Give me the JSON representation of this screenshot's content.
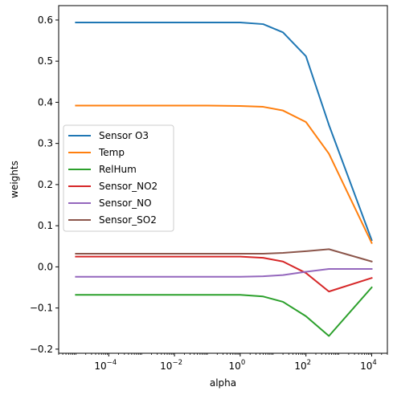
{
  "chart_data": {
    "type": "line",
    "xscale": "log",
    "xlabel": "alpha",
    "ylabel": "weights",
    "xlim": [
      3e-06,
      30000
    ],
    "ylim": [
      -0.21,
      0.635
    ],
    "xticks": [
      {
        "value": 0.0001,
        "base": "10",
        "exp": "−4"
      },
      {
        "value": 0.01,
        "base": "10",
        "exp": "−2"
      },
      {
        "value": 1,
        "base": "10",
        "exp": "0"
      },
      {
        "value": 100,
        "base": "10",
        "exp": "2"
      },
      {
        "value": 10000,
        "base": "10",
        "exp": "4"
      }
    ],
    "yticks": [
      {
        "value": -0.2,
        "label": "−0.2"
      },
      {
        "value": -0.1,
        "label": "−0.1"
      },
      {
        "value": 0.0,
        "label": "0.0"
      },
      {
        "value": 0.1,
        "label": "0.1"
      },
      {
        "value": 0.2,
        "label": "0.2"
      },
      {
        "value": 0.3,
        "label": "0.3"
      },
      {
        "value": 0.4,
        "label": "0.4"
      },
      {
        "value": 0.5,
        "label": "0.5"
      },
      {
        "value": 0.6,
        "label": "0.6"
      }
    ],
    "grid": false,
    "legend_position": "center-left",
    "x": [
      1e-05,
      0.0001,
      0.001,
      0.01,
      0.1,
      1,
      5,
      20,
      100,
      500,
      10000
    ],
    "series": [
      {
        "name": "Sensor O3",
        "color": "#1f77b4",
        "values": [
          0.594,
          0.594,
          0.594,
          0.594,
          0.594,
          0.594,
          0.59,
          0.57,
          0.512,
          0.345,
          0.065
        ]
      },
      {
        "name": "Temp",
        "color": "#ff7f0e",
        "values": [
          0.392,
          0.392,
          0.392,
          0.392,
          0.392,
          0.391,
          0.389,
          0.38,
          0.352,
          0.275,
          0.058
        ]
      },
      {
        "name": "RelHum",
        "color": "#2ca02c",
        "values": [
          -0.068,
          -0.068,
          -0.068,
          -0.068,
          -0.068,
          -0.068,
          -0.072,
          -0.085,
          -0.12,
          -0.168,
          -0.05
        ]
      },
      {
        "name": "Sensor_NO2",
        "color": "#d62728",
        "values": [
          0.025,
          0.025,
          0.025,
          0.025,
          0.025,
          0.025,
          0.022,
          0.013,
          -0.015,
          -0.06,
          -0.027
        ]
      },
      {
        "name": "Sensor_NO",
        "color": "#9467bd",
        "values": [
          -0.024,
          -0.024,
          -0.024,
          -0.024,
          -0.024,
          -0.024,
          -0.023,
          -0.02,
          -0.012,
          -0.005,
          -0.005
        ]
      },
      {
        "name": "Sensor_SO2",
        "color": "#8c564b",
        "values": [
          0.032,
          0.032,
          0.032,
          0.032,
          0.032,
          0.032,
          0.032,
          0.034,
          0.038,
          0.043,
          0.013
        ]
      }
    ]
  }
}
